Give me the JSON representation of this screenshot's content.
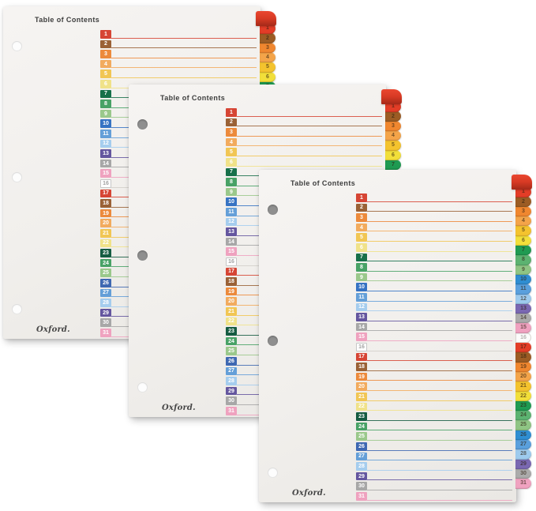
{
  "product": {
    "title": "Table of Contents",
    "brand": "Oxford.",
    "description": "Three table-of-contents divider sheets, each with multicolor numbered index tabs 1-31 and matching ruled entry lines"
  },
  "colors": {
    "background": "#ffffff",
    "paper": "#f2f0ed",
    "title_text": "#3d3d3d",
    "brand_text": "#474747",
    "hole_gray": "#8f8f8f",
    "row_number_text": "#ffffff",
    "tab_number_text": "rgba(45,30,15,0.65)",
    "curl_red_dark": "#a42a19"
  },
  "entries": [
    {
      "number": "1",
      "color": "#d64534",
      "tab_color": "#e33d27"
    },
    {
      "number": "2",
      "color": "#9a6136",
      "tab_color": "#9c5c24"
    },
    {
      "number": "3",
      "color": "#ec8a3c",
      "tab_color": "#f0872f"
    },
    {
      "number": "4",
      "color": "#f2ab5e",
      "tab_color": "#f4a449"
    },
    {
      "number": "5",
      "color": "#f1c654",
      "tab_color": "#f4c32e"
    },
    {
      "number": "6",
      "color": "#f0e289",
      "tab_color": "#f2df3a"
    },
    {
      "number": "7",
      "color": "#17704a",
      "tab_color": "#1f9b52"
    },
    {
      "number": "8",
      "color": "#48a266",
      "tab_color": "#5cb371"
    },
    {
      "number": "9",
      "color": "#9ac88b",
      "tab_color": "#8fc584"
    },
    {
      "number": "10",
      "color": "#3673c3",
      "tab_color": "#2f8ed2"
    },
    {
      "number": "11",
      "color": "#649fd8",
      "tab_color": "#5aa0dd"
    },
    {
      "number": "12",
      "color": "#a5cdee",
      "tab_color": "#9ecbee"
    },
    {
      "number": "13",
      "color": "#64569f",
      "tab_color": "#7a68b2"
    },
    {
      "number": "14",
      "color": "#a7a7a7",
      "tab_color": "#ababab"
    },
    {
      "number": "15",
      "color": "#efa2bf",
      "tab_color": "#f0a2c0"
    },
    {
      "number": "16",
      "color": "#ffffff",
      "tab_color": "#fcfcfb",
      "number_text": "#a3a3a3",
      "box_border": "#c6c6c6",
      "line_color": "#d2cfca",
      "tab_border": "#d8d5d0",
      "tab_text": "#b5b3af"
    },
    {
      "number": "17",
      "color": "#d64534",
      "tab_color": "#e33d27"
    },
    {
      "number": "18",
      "color": "#9a6136",
      "tab_color": "#9c5c24"
    },
    {
      "number": "19",
      "color": "#ec8a3c",
      "tab_color": "#f0872f"
    },
    {
      "number": "20",
      "color": "#f2ab5e",
      "tab_color": "#f4a449"
    },
    {
      "number": "21",
      "color": "#f1c654",
      "tab_color": "#f4c32e"
    },
    {
      "number": "22",
      "color": "#f0e289",
      "tab_color": "#f2df3a"
    },
    {
      "number": "23",
      "color": "#155c42",
      "tab_color": "#1f9b52"
    },
    {
      "number": "24",
      "color": "#48a266",
      "tab_color": "#5cb371"
    },
    {
      "number": "25",
      "color": "#9ac88b",
      "tab_color": "#8fc584"
    },
    {
      "number": "26",
      "color": "#3e68b2",
      "tab_color": "#2f8ed2"
    },
    {
      "number": "27",
      "color": "#649fd8",
      "tab_color": "#5aa0dd"
    },
    {
      "number": "28",
      "color": "#a5cdee",
      "tab_color": "#9ecbee"
    },
    {
      "number": "29",
      "color": "#64569f",
      "tab_color": "#7a68b2"
    },
    {
      "number": "30",
      "color": "#a7a7a7",
      "tab_color": "#ababab"
    },
    {
      "number": "31",
      "color": "#efa2bf",
      "tab_color": "#f0a2c0"
    }
  ]
}
